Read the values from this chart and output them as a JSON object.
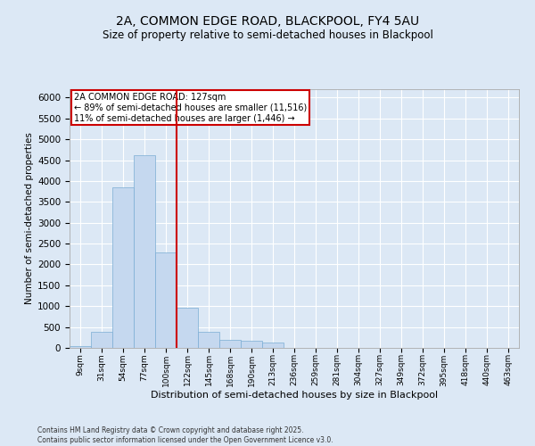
{
  "title_line1": "2A, COMMON EDGE ROAD, BLACKPOOL, FY4 5AU",
  "title_line2": "Size of property relative to semi-detached houses in Blackpool",
  "xlabel": "Distribution of semi-detached houses by size in Blackpool",
  "ylabel": "Number of semi-detached properties",
  "categories": [
    "9sqm",
    "31sqm",
    "54sqm",
    "77sqm",
    "100sqm",
    "122sqm",
    "145sqm",
    "168sqm",
    "190sqm",
    "213sqm",
    "236sqm",
    "259sqm",
    "281sqm",
    "304sqm",
    "327sqm",
    "349sqm",
    "372sqm",
    "395sqm",
    "418sqm",
    "440sqm",
    "463sqm"
  ],
  "values": [
    40,
    390,
    3850,
    4620,
    2280,
    960,
    390,
    200,
    170,
    120,
    0,
    0,
    0,
    0,
    0,
    0,
    0,
    0,
    0,
    0,
    0
  ],
  "bar_color": "#c5d8ef",
  "bar_edge_color": "#7aadd4",
  "property_line_x": 4.5,
  "annotation_text": "2A COMMON EDGE ROAD: 127sqm\n← 89% of semi-detached houses are smaller (11,516)\n11% of semi-detached houses are larger (1,446) →",
  "annotation_box_color": "#ffffff",
  "annotation_box_edge_color": "#cc0000",
  "vline_color": "#cc0000",
  "ylim": [
    0,
    6200
  ],
  "yticks": [
    0,
    500,
    1000,
    1500,
    2000,
    2500,
    3000,
    3500,
    4000,
    4500,
    5000,
    5500,
    6000
  ],
  "background_color": "#dce8f5",
  "grid_color": "#ffffff",
  "footer_line1": "Contains HM Land Registry data © Crown copyright and database right 2025.",
  "footer_line2": "Contains public sector information licensed under the Open Government Licence v3.0."
}
